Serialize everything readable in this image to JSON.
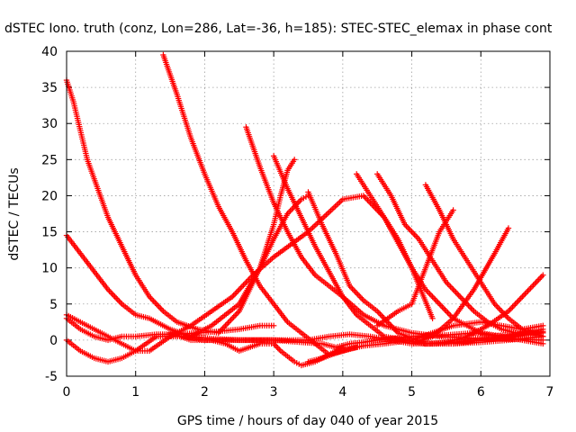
{
  "chart_data": {
    "type": "scatter",
    "title": "dSTEC Iono. truth (conz, Lon=286, Lat=-36, h=185): STEC-STEC_elemax in phase cont",
    "xlabel": "GPS time / hours of day 040 of year 2015",
    "ylabel": "dSTEC  / TECUs",
    "xlim": [
      0,
      7
    ],
    "ylim": [
      -5,
      40
    ],
    "xticks": [
      "0",
      "1",
      "2",
      "3",
      "4",
      "5",
      "6",
      "7"
    ],
    "yticks": [
      "-5",
      "0",
      "5",
      "10",
      "15",
      "20",
      "25",
      "30",
      "35",
      "40"
    ],
    "grid": true,
    "legend": "none",
    "marker": "+",
    "color": "#ff0000",
    "series": [
      {
        "x": [
          0,
          0.1,
          0.2,
          0.3,
          0.45,
          0.6,
          0.8,
          1.0,
          1.2,
          1.4,
          1.6,
          1.9,
          2.2,
          2.5,
          2.8,
          3.0,
          3.1,
          3.2,
          3.3
        ],
        "y": [
          36,
          33,
          29,
          25,
          21,
          17,
          13,
          9,
          6,
          4,
          2.5,
          1.5,
          1,
          4,
          10,
          16,
          20,
          23.5,
          25
        ]
      },
      {
        "x": [
          0,
          0.2,
          0.4,
          0.6,
          0.8,
          1.0,
          1.2,
          1.5,
          1.8,
          2.1,
          2.5,
          3.0,
          3.4,
          3.7,
          3.9,
          4.1,
          4.3,
          4.5,
          5.0,
          5.5,
          5.9,
          6.2,
          6.5,
          6.9
        ],
        "y": [
          14.5,
          12,
          9.5,
          7,
          5,
          3.5,
          3,
          1.5,
          0.5,
          0.2,
          0,
          0,
          -0.3,
          -0.5,
          -1,
          -0.5,
          -0.3,
          0,
          0.5,
          0.7,
          1,
          0.6,
          0.8,
          1.2
        ]
      },
      {
        "x": [
          0,
          0.2,
          0.4,
          0.6,
          0.8,
          1.0,
          1.2,
          1.5,
          1.8,
          2.1,
          2.4,
          2.7,
          3.0,
          3.5,
          4.0,
          4.3,
          4.6,
          5.0,
          5.3
        ],
        "y": [
          3.5,
          2.5,
          1.5,
          0.5,
          -0.5,
          -1.5,
          -1.5,
          0.5,
          2,
          4,
          6,
          9,
          11.5,
          15,
          19.5,
          20,
          17,
          10,
          3
        ]
      },
      {
        "x": [
          0,
          0.2,
          0.4,
          0.6,
          0.8,
          1.0,
          1.3,
          1.6,
          1.9,
          2.2,
          2.5,
          2.8,
          3.0
        ],
        "y": [
          3,
          1.5,
          0.5,
          0,
          0.5,
          0.5,
          0.8,
          0.8,
          1,
          1.2,
          1.5,
          2,
          2
        ]
      },
      {
        "x": [
          0,
          0.2,
          0.4,
          0.6,
          0.8,
          1.0,
          1.3,
          1.7,
          2.0,
          2.3,
          2.6,
          2.9,
          3.2,
          3.5,
          3.8,
          4.1,
          4.4,
          4.7,
          5.0,
          5.3,
          5.6,
          6.0,
          6.4,
          6.6,
          6.9
        ],
        "y": [
          0,
          -1.5,
          -2.5,
          -3,
          -2.5,
          -1.5,
          0.5,
          0.5,
          0,
          0,
          0,
          0,
          0,
          0,
          0.5,
          0.8,
          0.5,
          0,
          -0.5,
          -0.5,
          -0.3,
          0,
          0.3,
          0.7,
          1
        ]
      },
      {
        "x": [
          1.4,
          1.6,
          1.8,
          2.0,
          2.2,
          2.4,
          2.6,
          2.8,
          3.0,
          3.2,
          3.4,
          3.6,
          3.8,
          4.0,
          4.2
        ],
        "y": [
          39.5,
          34,
          28,
          23,
          18.5,
          15,
          11,
          7.5,
          5,
          2.5,
          1,
          -0.5,
          -2,
          -1.5,
          -1
        ]
      },
      {
        "x": [
          1.5,
          1.8,
          2.1,
          2.3,
          2.5,
          2.8,
          3.0,
          3.1,
          3.3,
          3.4,
          3.6,
          3.8,
          4.0
        ],
        "y": [
          1,
          0,
          0,
          -0.5,
          -1.5,
          -0.5,
          -0.5,
          -1.5,
          -3,
          -3.5,
          -3,
          -2,
          -1
        ]
      },
      {
        "x": [
          1.8,
          2.1,
          2.5,
          2.8,
          3.0,
          3.2,
          3.4,
          3.5
        ],
        "y": [
          0.5,
          2,
          5,
          10,
          14,
          17.5,
          19.5,
          20
        ]
      },
      {
        "x": [
          2.6,
          2.8,
          3.0,
          3.2,
          3.4,
          3.6,
          3.8,
          4.0,
          4.3,
          4.6,
          5.0,
          5.4,
          5.8,
          6.2,
          6.6,
          6.9
        ],
        "y": [
          29.5,
          24,
          19,
          15,
          11.5,
          9,
          7.5,
          6,
          3.5,
          2,
          1,
          0.5,
          0.3,
          0.2,
          0.1,
          0
        ]
      },
      {
        "x": [
          3.0,
          3.2,
          3.4,
          3.6,
          3.8,
          4.0,
          4.2,
          4.4,
          4.6,
          4.9,
          5.2,
          5.6,
          6.0,
          6.4,
          6.9
        ],
        "y": [
          25.5,
          21,
          17,
          13,
          9.5,
          6,
          3.5,
          2,
          0.5,
          0,
          -0.5,
          -0.5,
          -0.3,
          0,
          0.5
        ]
      },
      {
        "x": [
          3.5,
          3.7,
          3.9,
          4.1,
          4.3,
          4.5,
          4.8,
          5.2,
          5.6,
          6.0,
          6.4,
          6.9
        ],
        "y": [
          20.5,
          16,
          12,
          7.5,
          5.5,
          4,
          1,
          -0.5,
          -0.5,
          0,
          0.5,
          1.5
        ]
      },
      {
        "x": [
          4.2,
          4.4,
          4.6,
          4.8,
          5.0,
          5.2,
          5.4,
          5.6,
          5.8,
          6.0,
          6.3,
          6.6,
          6.9
        ],
        "y": [
          23,
          20,
          17,
          14,
          10,
          7,
          5,
          3,
          2,
          1,
          0.5,
          0,
          -0.5
        ]
      },
      {
        "x": [
          4.5,
          4.7,
          4.9,
          5.1,
          5.3,
          5.5,
          5.7,
          5.9,
          6.1,
          6.3,
          6.5,
          6.7,
          6.9
        ],
        "y": [
          23,
          20,
          16,
          14,
          11,
          8,
          6,
          4,
          2.5,
          1.5,
          1,
          1,
          1
        ]
      },
      {
        "x": [
          3.5,
          3.7,
          3.9,
          4.1,
          4.3,
          4.6,
          5.0,
          5.3,
          5.6,
          6.0,
          6.3,
          6.6,
          6.9
        ],
        "y": [
          -3,
          -2.5,
          -1.8,
          -1.2,
          -0.8,
          -0.5,
          0,
          1,
          2,
          2.5,
          2,
          1.5,
          2
        ]
      },
      {
        "x": [
          4.5,
          4.8,
          5.0,
          5.2,
          5.4,
          5.6
        ],
        "y": [
          2,
          4,
          5,
          10,
          15,
          18
        ]
      },
      {
        "x": [
          5.2,
          5.4,
          5.6,
          5.8,
          6.0,
          6.2,
          6.4,
          6.6,
          6.9
        ],
        "y": [
          21.5,
          18,
          14,
          11,
          8,
          5,
          3,
          1.5,
          0.5
        ]
      },
      {
        "x": [
          5.0,
          5.3,
          5.6,
          5.9,
          6.2,
          6.4
        ],
        "y": [
          -0.5,
          0.5,
          3,
          7,
          12,
          15.5
        ]
      },
      {
        "x": [
          5.2,
          5.5,
          5.8,
          6.1,
          6.4,
          6.7,
          6.9
        ],
        "y": [
          -0.5,
          -0.3,
          0.5,
          2,
          4,
          7,
          9
        ]
      }
    ]
  }
}
